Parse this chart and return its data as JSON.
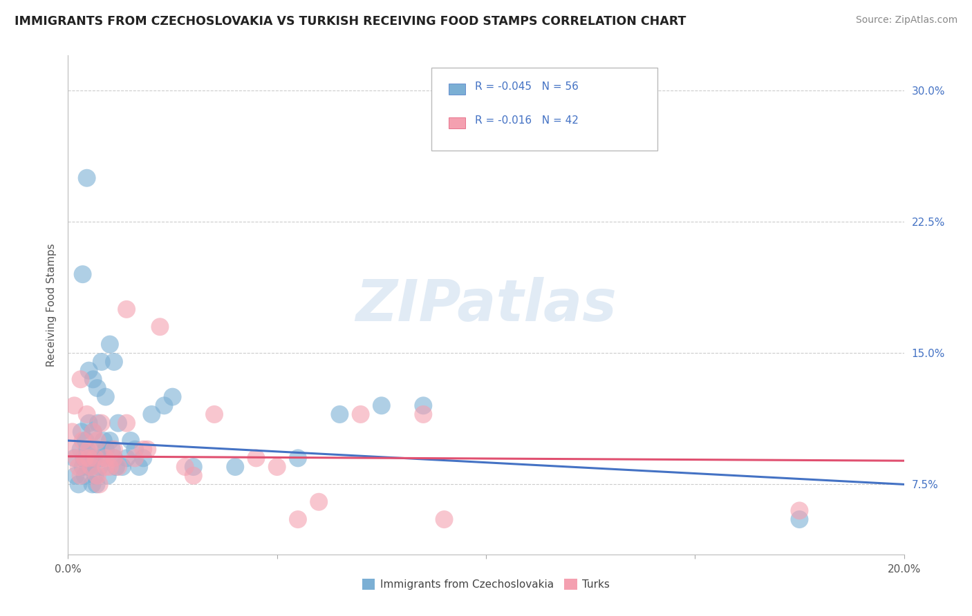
{
  "title": "IMMIGRANTS FROM CZECHOSLOVAKIA VS TURKISH RECEIVING FOOD STAMPS CORRELATION CHART",
  "source": "Source: ZipAtlas.com",
  "ylabel": "Receiving Food Stamps",
  "yticks": [
    7.5,
    15.0,
    22.5,
    30.0
  ],
  "ytick_labels": [
    "7.5%",
    "15.0%",
    "22.5%",
    "30.0%"
  ],
  "xmin": 0.0,
  "xmax": 20.0,
  "ymin": 3.5,
  "ymax": 32.0,
  "legend_r1": "-0.045",
  "legend_n1": "56",
  "legend_r2": "-0.016",
  "legend_n2": "42",
  "blue_color": "#7BAFD4",
  "pink_color": "#F4A0B0",
  "blue_line_color": "#4472C4",
  "pink_line_color": "#E05070",
  "watermark": "ZIPatlas",
  "watermark_color": "#C5D8EC",
  "blue_trend_start": 10.0,
  "blue_trend_end": 7.5,
  "pink_trend_start": 9.1,
  "pink_trend_end": 8.85,
  "blue_scatter_x": [
    0.15,
    0.18,
    0.25,
    0.3,
    0.32,
    0.35,
    0.38,
    0.4,
    0.42,
    0.45,
    0.48,
    0.5,
    0.52,
    0.55,
    0.58,
    0.6,
    0.62,
    0.65,
    0.68,
    0.7,
    0.72,
    0.75,
    0.8,
    0.85,
    0.9,
    0.95,
    1.0,
    1.05,
    1.1,
    1.15,
    1.2,
    1.3,
    1.4,
    1.5,
    1.6,
    1.7,
    1.8,
    2.0,
    2.3,
    2.5,
    3.0,
    4.0,
    5.5,
    6.5,
    7.5,
    8.5,
    1.0,
    0.5,
    0.6,
    0.7,
    0.8,
    0.9,
    1.1,
    17.5,
    0.35,
    0.45
  ],
  "blue_scatter_y": [
    9.0,
    8.0,
    7.5,
    9.5,
    10.5,
    8.5,
    9.0,
    8.0,
    10.0,
    9.5,
    8.5,
    11.0,
    9.0,
    8.5,
    7.5,
    10.5,
    9.0,
    8.0,
    7.5,
    9.5,
    11.0,
    8.5,
    9.0,
    10.0,
    9.5,
    8.0,
    10.0,
    9.5,
    9.0,
    8.5,
    11.0,
    8.5,
    9.0,
    10.0,
    9.5,
    8.5,
    9.0,
    11.5,
    12.0,
    12.5,
    8.5,
    8.5,
    9.0,
    11.5,
    12.0,
    12.0,
    15.5,
    14.0,
    13.5,
    13.0,
    14.5,
    12.5,
    14.5,
    5.5,
    19.5,
    25.0
  ],
  "pink_scatter_x": [
    0.05,
    0.1,
    0.15,
    0.2,
    0.25,
    0.3,
    0.35,
    0.4,
    0.45,
    0.5,
    0.55,
    0.6,
    0.65,
    0.7,
    0.75,
    0.8,
    0.9,
    1.0,
    1.1,
    1.2,
    1.4,
    1.6,
    1.9,
    2.2,
    2.8,
    3.5,
    4.5,
    5.0,
    6.0,
    7.0,
    9.0,
    0.3,
    0.5,
    0.7,
    0.9,
    1.1,
    1.4,
    1.8,
    3.0,
    5.5,
    8.5,
    17.5
  ],
  "pink_scatter_y": [
    9.5,
    10.5,
    12.0,
    9.0,
    8.5,
    13.5,
    10.0,
    9.0,
    11.5,
    9.5,
    8.5,
    10.5,
    9.0,
    8.0,
    7.5,
    11.0,
    9.0,
    8.5,
    9.5,
    8.5,
    17.5,
    9.0,
    9.5,
    16.5,
    8.5,
    11.5,
    9.0,
    8.5,
    6.5,
    11.5,
    5.5,
    8.0,
    9.0,
    10.0,
    8.5,
    9.0,
    11.0,
    9.5,
    8.0,
    5.5,
    11.5,
    6.0
  ]
}
